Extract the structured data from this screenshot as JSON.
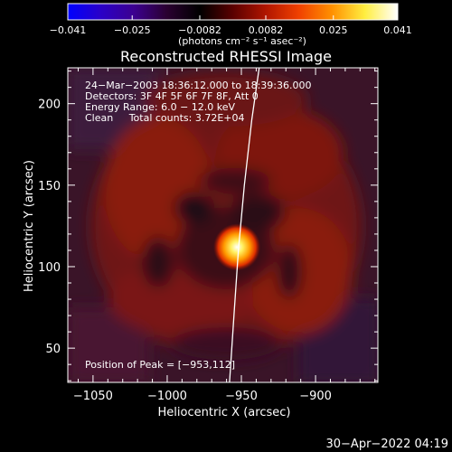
{
  "chart_data": {
    "type": "heatmap",
    "title": "Reconstructed RHESSI Image",
    "xlabel": "Heliocentric X (arcsec)",
    "ylabel": "Heliocentric Y (arcsec)",
    "xlim": [
      -1067,
      -858
    ],
    "ylim": [
      29,
      222
    ],
    "x_ticks": [
      {
        "value": -1050,
        "label": "−1050"
      },
      {
        "value": -1000,
        "label": "−1000"
      },
      {
        "value": -950,
        "label": "−950"
      },
      {
        "value": -900,
        "label": "−900"
      }
    ],
    "y_ticks": [
      {
        "value": 50,
        "label": "50"
      },
      {
        "value": 100,
        "label": "100"
      },
      {
        "value": 150,
        "label": "150"
      },
      {
        "value": 200,
        "label": "200"
      }
    ],
    "colorbar": {
      "range": [
        -0.041,
        0.041
      ],
      "unit_label": "(photons cm⁻² s⁻¹ asec⁻²)",
      "ticks": [
        {
          "value": -0.041,
          "label": "−0.041"
        },
        {
          "value": -0.025,
          "label": "−0.025"
        },
        {
          "value": -0.0082,
          "label": "−0.0082"
        },
        {
          "value": 0.0082,
          "label": "0.0082"
        },
        {
          "value": 0.025,
          "label": "0.025"
        },
        {
          "value": 0.041,
          "label": "0.041"
        }
      ],
      "colors": [
        "#0000ff",
        "#2a00c8",
        "#3c0090",
        "#2a0030",
        "#000000",
        "#5a0000",
        "#b01500",
        "#f04000",
        "#ff9000",
        "#ffee40",
        "#ffffff"
      ]
    },
    "info_lines": [
      "24−Mar−2003 18:36:12.000 to 18:39:36.000",
      "Detectors: 3F 4F 5F 6F 7F 8F, Att 0",
      "Energy Range: 6.0 − 12.0 keV",
      "Clean     Total counts: 3.72E+04"
    ],
    "peak_label": "Position of Peak = [−953,112]",
    "peak": [
      -953,
      112
    ],
    "limb_curve": [
      [
        -958,
        29
      ],
      [
        -955,
        70
      ],
      [
        -952,
        110
      ],
      [
        -948,
        150
      ],
      [
        -943,
        190
      ],
      [
        -938,
        222
      ]
    ]
  },
  "timestamp": "30−Apr−2022 04:19"
}
